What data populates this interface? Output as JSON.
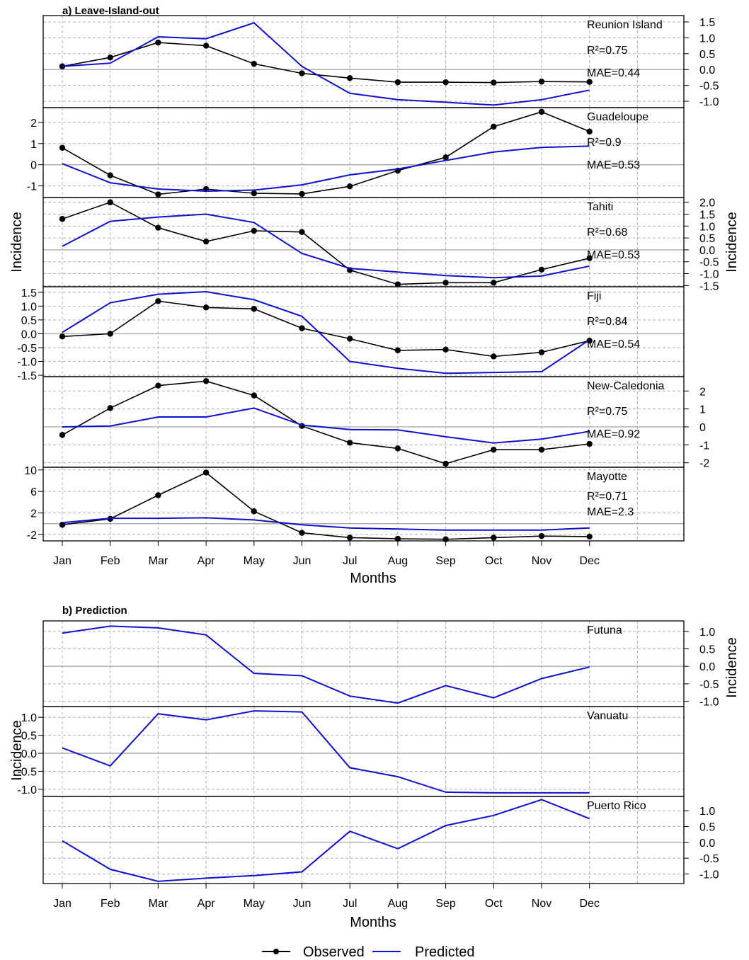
{
  "section_a": {
    "title": "a) Leave-Island-out",
    "xlabel": "Months",
    "ylabel": "Incidence"
  },
  "section_b": {
    "title": "b) Prediction",
    "xlabel": "Months",
    "ylabel": "Incidence"
  },
  "months": [
    "Jan",
    "Feb",
    "Mar",
    "Apr",
    "May",
    "Jun",
    "Jul",
    "Aug",
    "Sep",
    "Oct",
    "Nov",
    "Dec"
  ],
  "legend": {
    "observed": "Observed",
    "predicted": "Predicted"
  },
  "colors": {
    "observed": "#000000",
    "predicted": "#1010d0",
    "grid": "#b0b0b0",
    "zero": "#a8a8a8"
  },
  "chart_data": [
    {
      "type": "line",
      "panel_id": "reunion",
      "section": "a",
      "title": "Reunion Island",
      "r2": "R²=0.75",
      "mae": "MAE=0.44",
      "ylim": [
        -1.2,
        1.7
      ],
      "yticks": [
        -1.0,
        -0.5,
        0.0,
        0.5,
        1.0,
        1.5
      ],
      "ytick_labels": [
        "-1.0",
        "-0.5",
        "0.0",
        "0.5",
        "1.0",
        "1.5"
      ],
      "axis_side": "right",
      "categories": [
        "Jan",
        "Feb",
        "Mar",
        "Apr",
        "May",
        "Jun",
        "Jul",
        "Aug",
        "Sep",
        "Oct",
        "Nov",
        "Dec"
      ],
      "series": [
        {
          "name": "Observed",
          "values": [
            0.1,
            0.38,
            0.85,
            0.75,
            0.18,
            -0.12,
            -0.27,
            -0.4,
            -0.4,
            -0.41,
            -0.38,
            -0.39
          ]
        },
        {
          "name": "Predicted",
          "values": [
            0.1,
            0.2,
            1.03,
            0.97,
            1.47,
            0.1,
            -0.75,
            -0.95,
            -1.03,
            -1.12,
            -0.95,
            -0.65
          ]
        }
      ]
    },
    {
      "type": "line",
      "panel_id": "guadeloupe",
      "section": "a",
      "title": "Guadeloupe",
      "r2": "R²=0.9",
      "mae": "MAE=0.53",
      "ylim": [
        -1.55,
        2.7
      ],
      "yticks": [
        -1,
        0,
        1,
        2
      ],
      "ytick_labels": [
        "-1",
        "0",
        "1",
        "2"
      ],
      "axis_side": "left",
      "categories": [
        "Jan",
        "Feb",
        "Mar",
        "Apr",
        "May",
        "Jun",
        "Jul",
        "Aug",
        "Sep",
        "Oct",
        "Nov",
        "Dec"
      ],
      "series": [
        {
          "name": "Observed",
          "values": [
            0.8,
            -0.5,
            -1.4,
            -1.15,
            -1.35,
            -1.38,
            -1.02,
            -0.28,
            0.35,
            1.8,
            2.5,
            1.57
          ]
        },
        {
          "name": "Predicted",
          "values": [
            0.05,
            -0.85,
            -1.15,
            -1.25,
            -1.2,
            -0.95,
            -0.48,
            -0.2,
            0.2,
            0.6,
            0.82,
            0.88
          ]
        }
      ]
    },
    {
      "type": "line",
      "panel_id": "tahiti",
      "section": "a",
      "title": "Tahiti",
      "r2": "R²=0.68",
      "mae": "MAE=0.53",
      "ylim": [
        -1.55,
        2.2
      ],
      "yticks": [
        -1.5,
        -1.0,
        -0.5,
        0.0,
        0.5,
        1.0,
        1.5,
        2.0
      ],
      "ytick_labels": [
        "-1.5",
        "-1.0",
        "-0.5",
        "0.0",
        "0.5",
        "1.0",
        "1.5",
        "2.0"
      ],
      "axis_side": "right",
      "categories": [
        "Jan",
        "Feb",
        "Mar",
        "Apr",
        "May",
        "Jun",
        "Jul",
        "Aug",
        "Sep",
        "Oct",
        "Nov",
        "Dec"
      ],
      "series": [
        {
          "name": "Observed",
          "values": [
            1.3,
            2.0,
            0.93,
            0.35,
            0.8,
            0.75,
            -0.85,
            -1.45,
            -1.38,
            -1.38,
            -0.83,
            -0.35
          ]
        },
        {
          "name": "Predicted",
          "values": [
            0.15,
            1.2,
            1.38,
            1.5,
            1.15,
            -0.15,
            -0.78,
            -0.93,
            -1.08,
            -1.17,
            -1.1,
            -0.68
          ]
        }
      ]
    },
    {
      "type": "line",
      "panel_id": "fiji",
      "section": "a",
      "title": "Fiji",
      "r2": "R²=0.84",
      "mae": "MAE=0.54",
      "ylim": [
        -1.55,
        1.7
      ],
      "yticks": [
        -1.5,
        -1.0,
        -0.5,
        0.0,
        0.5,
        1.0,
        1.5
      ],
      "ytick_labels": [
        "-1.5",
        "-1.0",
        "-0.5",
        "0.0",
        "0.5",
        "1.0",
        "1.5"
      ],
      "axis_side": "left",
      "categories": [
        "Jan",
        "Feb",
        "Mar",
        "Apr",
        "May",
        "Jun",
        "Jul",
        "Aug",
        "Sep",
        "Oct",
        "Nov",
        "Dec"
      ],
      "series": [
        {
          "name": "Observed",
          "values": [
            -0.1,
            0.0,
            1.18,
            0.95,
            0.9,
            0.2,
            -0.18,
            -0.6,
            -0.57,
            -0.82,
            -0.67,
            -0.25
          ]
        },
        {
          "name": "Predicted",
          "values": [
            0.05,
            1.12,
            1.43,
            1.52,
            1.23,
            0.63,
            -1.0,
            -1.25,
            -1.43,
            -1.4,
            -1.37,
            -0.22
          ]
        }
      ]
    },
    {
      "type": "line",
      "panel_id": "new-caledonia",
      "section": "a",
      "title": "New-Caledonia",
      "r2": "R²=0.75",
      "mae": "MAE=0.92",
      "ylim": [
        -2.25,
        2.8
      ],
      "yticks": [
        -2,
        -1,
        0,
        1,
        2
      ],
      "ytick_labels": [
        "-2",
        "-1",
        "0",
        "1",
        "2"
      ],
      "axis_side": "right",
      "categories": [
        "Jan",
        "Feb",
        "Mar",
        "Apr",
        "May",
        "Jun",
        "Jul",
        "Aug",
        "Sep",
        "Oct",
        "Nov",
        "Dec"
      ],
      "series": [
        {
          "name": "Observed",
          "values": [
            -0.45,
            1.05,
            2.3,
            2.55,
            1.75,
            0.05,
            -0.88,
            -1.2,
            -2.05,
            -1.27,
            -1.27,
            -0.95
          ]
        },
        {
          "name": "Predicted",
          "values": [
            0.0,
            0.05,
            0.55,
            0.55,
            1.05,
            0.1,
            -0.15,
            -0.17,
            -0.55,
            -0.9,
            -0.68,
            -0.25
          ]
        }
      ]
    },
    {
      "type": "line",
      "panel_id": "mayotte",
      "section": "a",
      "title": "Mayotte",
      "r2": "R²=0.71",
      "mae": "MAE=2.3",
      "ylim": [
        -3.2,
        10.5
      ],
      "yticks": [
        -2,
        2,
        6,
        10
      ],
      "ytick_labels": [
        "-2",
        "2",
        "6",
        "10"
      ],
      "axis_side": "left",
      "categories": [
        "Jan",
        "Feb",
        "Mar",
        "Apr",
        "May",
        "Jun",
        "Jul",
        "Aug",
        "Sep",
        "Oct",
        "Nov",
        "Dec"
      ],
      "series": [
        {
          "name": "Observed",
          "values": [
            -0.2,
            0.9,
            5.3,
            9.5,
            2.3,
            -1.7,
            -2.6,
            -2.8,
            -2.9,
            -2.6,
            -2.3,
            -2.4
          ]
        },
        {
          "name": "Predicted",
          "values": [
            0.2,
            1.0,
            1.0,
            1.1,
            0.7,
            -0.2,
            -0.8,
            -1.0,
            -1.2,
            -1.2,
            -1.2,
            -0.8
          ]
        }
      ]
    },
    {
      "type": "line",
      "panel_id": "futuna",
      "section": "b",
      "title": "Futuna",
      "ylim": [
        -1.15,
        1.3
      ],
      "yticks": [
        -1.0,
        -0.5,
        0.0,
        0.5,
        1.0
      ],
      "ytick_labels": [
        "-1.0",
        "-0.5",
        "0.0",
        "0.5",
        "1.0"
      ],
      "axis_side": "right",
      "categories": [
        "Jan",
        "Feb",
        "Mar",
        "Apr",
        "May",
        "Jun",
        "Jul",
        "Aug",
        "Sep",
        "Oct",
        "Nov",
        "Dec"
      ],
      "series": [
        {
          "name": "Predicted",
          "values": [
            0.95,
            1.15,
            1.1,
            0.9,
            -0.2,
            -0.27,
            -0.85,
            -1.05,
            -0.55,
            -0.9,
            -0.35,
            -0.02
          ]
        }
      ]
    },
    {
      "type": "line",
      "panel_id": "vanuatu",
      "section": "b",
      "title": "Vanuatu",
      "ylim": [
        -1.2,
        1.3
      ],
      "yticks": [
        -1.0,
        -0.5,
        0.0,
        0.5,
        1.0
      ],
      "ytick_labels": [
        "-1.0",
        "-0.5",
        "0.0",
        "0.5",
        "1.0"
      ],
      "axis_side": "left",
      "categories": [
        "Jan",
        "Feb",
        "Mar",
        "Apr",
        "May",
        "Jun",
        "Jul",
        "Aug",
        "Sep",
        "Oct",
        "Nov",
        "Dec"
      ],
      "series": [
        {
          "name": "Predicted",
          "values": [
            0.15,
            -0.35,
            1.1,
            0.93,
            1.18,
            1.15,
            -0.4,
            -0.65,
            -1.08,
            -1.1,
            -1.1,
            -1.1
          ]
        }
      ]
    },
    {
      "type": "line",
      "panel_id": "puerto-rico",
      "section": "b",
      "title": "Puerto Rico",
      "ylim": [
        -1.3,
        1.45
      ],
      "yticks": [
        -1.0,
        -0.5,
        0.0,
        0.5,
        1.0
      ],
      "ytick_labels": [
        "-1.0",
        "-0.5",
        "0.0",
        "0.5",
        "1.0"
      ],
      "axis_side": "right",
      "categories": [
        "Jan",
        "Feb",
        "Mar",
        "Apr",
        "May",
        "Jun",
        "Jul",
        "Aug",
        "Sep",
        "Oct",
        "Nov",
        "Dec"
      ],
      "series": [
        {
          "name": "Predicted",
          "values": [
            0.05,
            -0.85,
            -1.23,
            -1.13,
            -1.05,
            -0.93,
            0.35,
            -0.2,
            0.53,
            0.85,
            1.35,
            0.75
          ]
        }
      ]
    }
  ]
}
